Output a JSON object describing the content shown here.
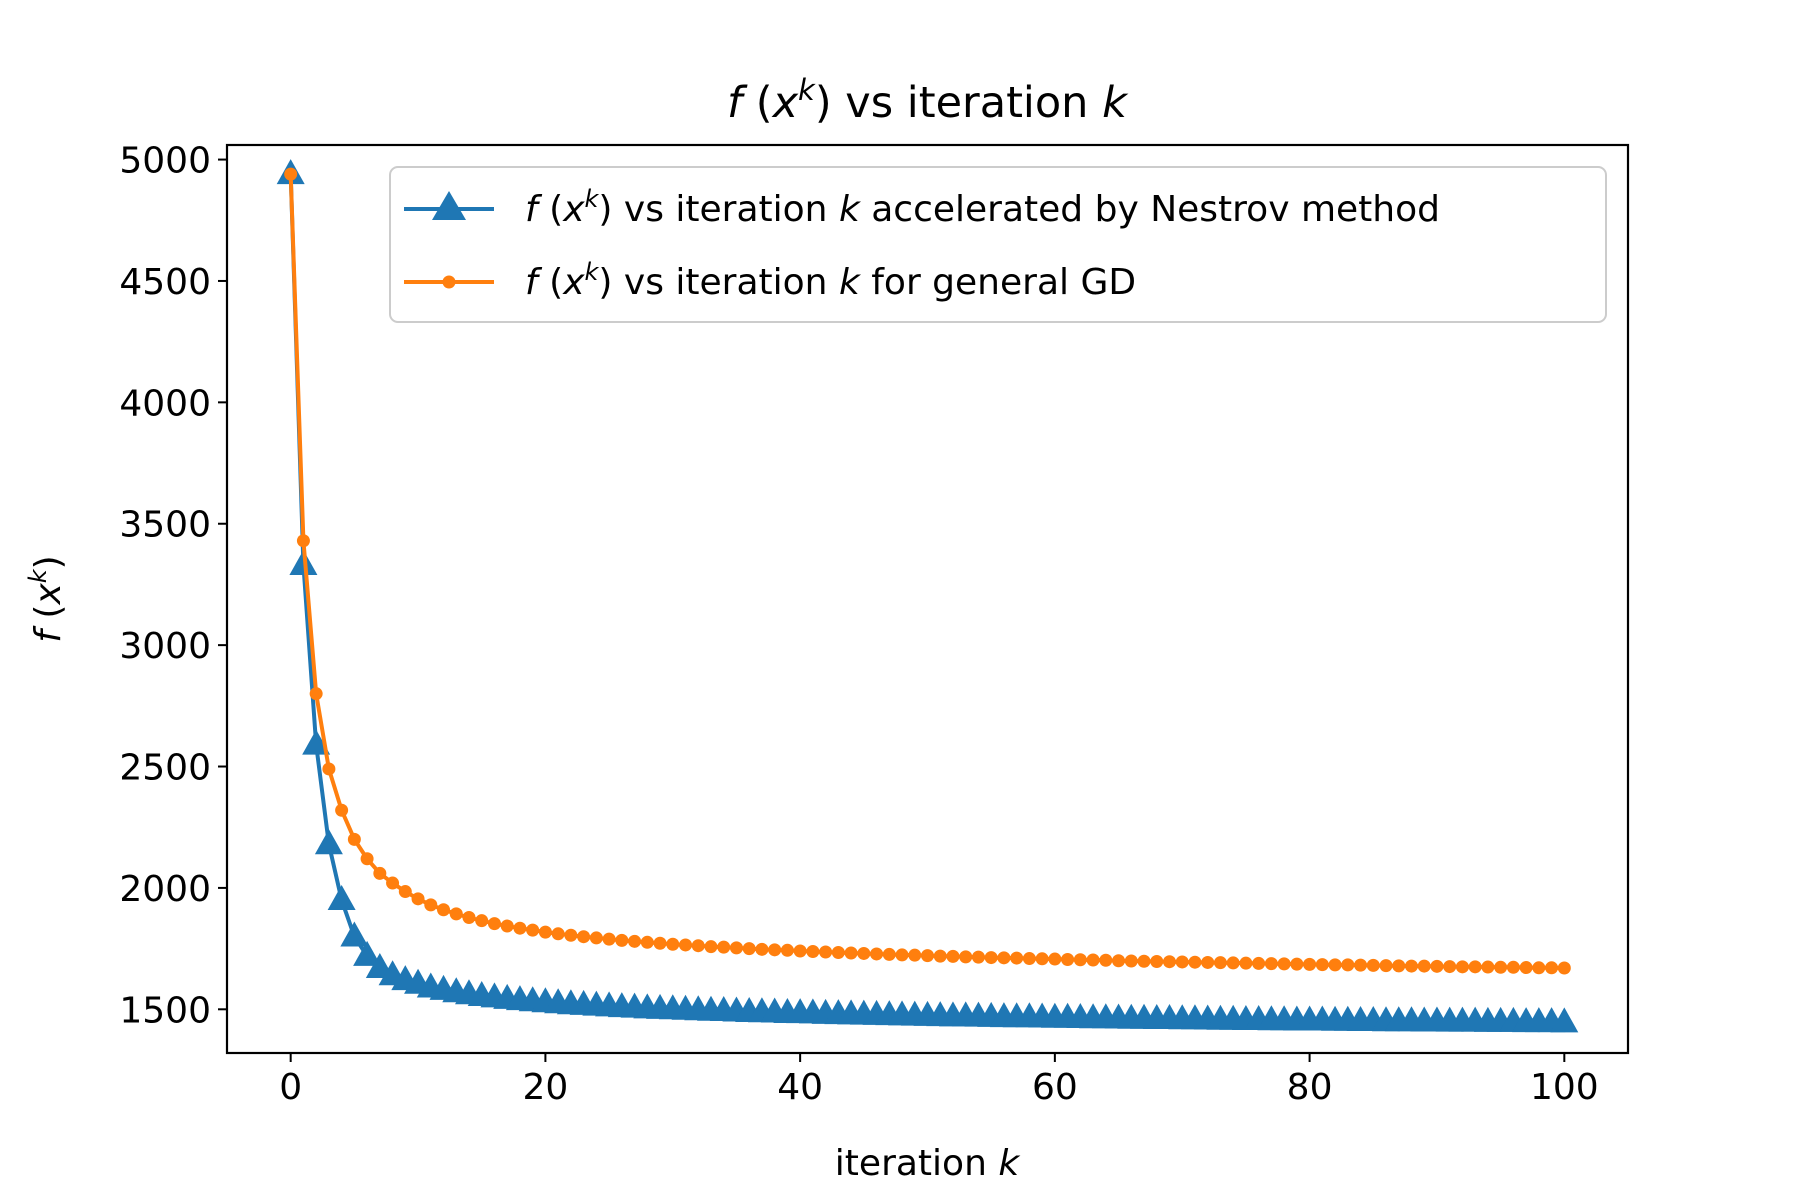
{
  "chart_data": {
    "type": "line",
    "title": {
      "f": "f",
      "open": " (",
      "x": "x",
      "sup": "k",
      "close": ") vs iteration ",
      "k": "k"
    },
    "xlabel": {
      "text": "iteration ",
      "k": "k"
    },
    "ylabel": {
      "f": "f",
      "open": " (",
      "x": "x",
      "sup": "k",
      "close": ")"
    },
    "xlim": [
      -5,
      105
    ],
    "ylim": [
      1320,
      5060
    ],
    "x_ticks": [
      0,
      20,
      40,
      60,
      80,
      100
    ],
    "x_tick_labels": [
      "0",
      "20",
      "40",
      "60",
      "80",
      "100"
    ],
    "y_ticks": [
      1500,
      2000,
      2500,
      3000,
      3500,
      4000,
      4500,
      5000
    ],
    "y_tick_labels": [
      "1500",
      "2000",
      "2500",
      "3000",
      "3500",
      "4000",
      "4500",
      "5000"
    ],
    "grid": false,
    "legend_position": "top-right",
    "x": [
      0,
      1,
      2,
      3,
      4,
      5,
      6,
      7,
      8,
      9,
      10,
      11,
      12,
      13,
      14,
      15,
      16,
      17,
      18,
      19,
      20,
      21,
      22,
      23,
      24,
      25,
      26,
      27,
      28,
      29,
      30,
      31,
      32,
      33,
      34,
      35,
      36,
      37,
      38,
      39,
      40,
      41,
      42,
      43,
      44,
      45,
      46,
      47,
      48,
      49,
      50,
      51,
      52,
      53,
      54,
      55,
      56,
      57,
      58,
      59,
      60,
      61,
      62,
      63,
      64,
      65,
      66,
      67,
      68,
      69,
      70,
      71,
      72,
      73,
      74,
      75,
      76,
      77,
      78,
      79,
      80,
      81,
      82,
      83,
      84,
      85,
      86,
      87,
      88,
      89,
      90,
      91,
      92,
      93,
      94,
      95,
      96,
      97,
      98,
      99,
      100
    ],
    "series": [
      {
        "name": {
          "f": "f",
          "open": " (",
          "x": "x",
          "sup": "k",
          "close": ") vs iteration ",
          "k": "k",
          "rest": " accelerated by Nestrov method"
        },
        "color": "#1f77b4",
        "marker": "triangle",
        "values": [
          4940,
          3330,
          2590,
          2180,
          1950,
          1800,
          1720,
          1670,
          1640,
          1620,
          1605,
          1590,
          1580,
          1570,
          1562,
          1555,
          1549,
          1543,
          1538,
          1533,
          1529,
          1525,
          1521,
          1518,
          1515,
          1512,
          1509,
          1507,
          1504,
          1502,
          1500,
          1498,
          1496,
          1494,
          1493,
          1491,
          1489,
          1488,
          1487,
          1485,
          1484,
          1483,
          1481,
          1480,
          1479,
          1478,
          1477,
          1476,
          1475,
          1474,
          1473,
          1472,
          1471,
          1471,
          1470,
          1469,
          1468,
          1467,
          1467,
          1466,
          1465,
          1465,
          1464,
          1463,
          1463,
          1462,
          1461,
          1461,
          1460,
          1460,
          1459,
          1459,
          1458,
          1457,
          1457,
          1456,
          1456,
          1455,
          1455,
          1454,
          1454,
          1454,
          1453,
          1453,
          1452,
          1452,
          1451,
          1451,
          1451,
          1450,
          1450,
          1449,
          1449,
          1449,
          1448,
          1448,
          1448,
          1447,
          1447,
          1447,
          1446
        ]
      },
      {
        "name": {
          "f": "f",
          "open": " (",
          "x": "x",
          "sup": "k",
          "close": ") vs iteration ",
          "k": "k",
          "rest": " for general GD"
        },
        "color": "#ff7f0e",
        "marker": "circle",
        "values": [
          4940,
          3430,
          2800,
          2490,
          2320,
          2200,
          2120,
          2060,
          2020,
          1985,
          1955,
          1930,
          1910,
          1893,
          1878,
          1865,
          1853,
          1843,
          1834,
          1826,
          1818,
          1811,
          1805,
          1799,
          1794,
          1789,
          1784,
          1780,
          1776,
          1772,
          1768,
          1765,
          1762,
          1758,
          1756,
          1753,
          1750,
          1747,
          1745,
          1743,
          1740,
          1738,
          1736,
          1734,
          1732,
          1730,
          1728,
          1726,
          1724,
          1723,
          1721,
          1719,
          1718,
          1716,
          1715,
          1713,
          1712,
          1711,
          1709,
          1708,
          1707,
          1705,
          1704,
          1703,
          1702,
          1700,
          1699,
          1698,
          1697,
          1696,
          1695,
          1694,
          1693,
          1692,
          1691,
          1690,
          1689,
          1688,
          1687,
          1686,
          1685,
          1684,
          1683,
          1683,
          1682,
          1681,
          1680,
          1679,
          1678,
          1678,
          1677,
          1676,
          1675,
          1675,
          1674,
          1673,
          1673,
          1672,
          1671,
          1671,
          1670
        ]
      }
    ]
  }
}
